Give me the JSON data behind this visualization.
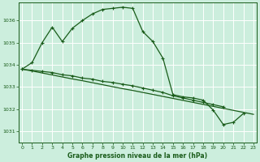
{
  "title": "Graphe pression niveau de la mer (hPa)",
  "bg_color": "#cceedd",
  "grid_color": "#ffffff",
  "line_color": "#1a5c1a",
  "ylim": [
    1030.5,
    1036.8
  ],
  "yticks": [
    1031,
    1032,
    1033,
    1034,
    1035,
    1036
  ],
  "xlim": [
    -0.3,
    23.3
  ],
  "xticks": [
    0,
    1,
    2,
    3,
    4,
    5,
    6,
    7,
    8,
    9,
    10,
    11,
    12,
    13,
    14,
    15,
    16,
    17,
    18,
    19,
    20,
    21,
    22,
    23
  ],
  "main_x": [
    0,
    1,
    2,
    3,
    4,
    5,
    6,
    7,
    8,
    9,
    10,
    11,
    12,
    13,
    14,
    15,
    16,
    17,
    18,
    19,
    20,
    21,
    22
  ],
  "main_y": [
    1033.8,
    1034.1,
    1035.0,
    1035.7,
    1035.05,
    1035.65,
    1036.0,
    1036.3,
    1036.5,
    1036.55,
    1036.6,
    1036.55,
    1035.5,
    1035.05,
    1034.3,
    1032.65,
    1032.55,
    1032.5,
    1032.4,
    1031.95,
    1031.3,
    1031.4,
    1031.8
  ],
  "flat1_x": [
    0,
    1,
    2,
    3,
    4,
    5,
    6,
    7,
    8,
    9,
    10,
    11,
    12,
    13,
    14,
    15,
    16,
    17,
    18,
    19,
    20
  ],
  "flat1_y": [
    1033.8,
    1033.75,
    1033.7,
    1033.65,
    1033.55,
    1033.5,
    1033.4,
    1033.35,
    1033.25,
    1033.2,
    1033.12,
    1033.05,
    1032.95,
    1032.85,
    1032.75,
    1032.6,
    1032.5,
    1032.4,
    1032.3,
    1032.2,
    1032.1
  ],
  "flat2_x": [
    0,
    1,
    2,
    3,
    4,
    5,
    6,
    7,
    8,
    9,
    10,
    11,
    12,
    13,
    14,
    15,
    16,
    17,
    18,
    19,
    20,
    21,
    22,
    23
  ],
  "flat2_y": [
    1033.8,
    1033.72,
    1033.63,
    1033.54,
    1033.45,
    1033.36,
    1033.28,
    1033.19,
    1033.1,
    1033.01,
    1032.92,
    1032.84,
    1032.75,
    1032.66,
    1032.57,
    1032.48,
    1032.39,
    1032.3,
    1032.21,
    1032.12,
    1032.03,
    1031.94,
    1031.85,
    1031.76
  ]
}
